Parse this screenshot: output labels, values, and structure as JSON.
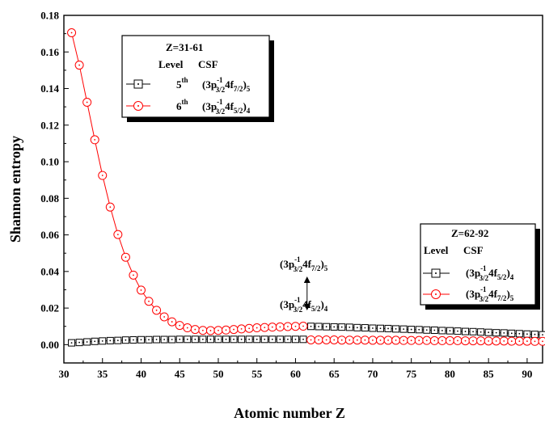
{
  "chart_data": {
    "type": "line",
    "xlabel": "Atomic number Z",
    "ylabel": "Shannon entropy",
    "xlim": [
      30,
      92
    ],
    "ylim": [
      -0.01,
      0.18
    ],
    "x_ticks": [
      "30",
      "35",
      "40",
      "45",
      "50",
      "55",
      "60",
      "65",
      "70",
      "75",
      "80",
      "85",
      "90"
    ],
    "y_ticks": [
      "0.00",
      "0.02",
      "0.04",
      "0.06",
      "0.08",
      "0.10",
      "0.12",
      "0.14",
      "0.16",
      "0.18"
    ],
    "grid": false,
    "legends": [
      {
        "title": "Z=31-61",
        "header_level": "Level",
        "header_csf": "CSF",
        "entries": [
          {
            "marker": "square",
            "color": "#000000",
            "level": "5",
            "level_sup": "th",
            "csf_base": "(3p",
            "csf_sup": "-1",
            "csf_sub1": "3/2",
            "csf_mid": "4f",
            "csf_sub2": "7/2",
            "csf_end": ")",
            "csf_j": "5"
          },
          {
            "marker": "circle",
            "color": "#ff0000",
            "level": "6",
            "level_sup": "th",
            "csf_base": "(3p",
            "csf_sup": "-1",
            "csf_sub1": "3/2",
            "csf_mid": "4f",
            "csf_sub2": "5/2",
            "csf_end": ")",
            "csf_j": "4"
          }
        ]
      },
      {
        "title": "Z=62-92",
        "header_level": "Level",
        "header_csf": "CSF",
        "entries": [
          {
            "marker": "square",
            "color": "#000000",
            "csf_base": "(3p",
            "csf_sup": "-1",
            "csf_sub1": "3/2",
            "csf_mid": "4f",
            "csf_sub2": "5/2",
            "csf_end": ")",
            "csf_j": "4"
          },
          {
            "marker": "circle",
            "color": "#ff0000",
            "csf_base": "(3p",
            "csf_sup": "-1",
            "csf_sub1": "3/2",
            "csf_mid": "4f",
            "csf_sub2": "7/2",
            "csf_end": ")",
            "csf_j": "5"
          }
        ]
      }
    ],
    "annotation": {
      "upper": {
        "csf_base": "(3p",
        "csf_sup": "-1",
        "csf_sub1": "3/2",
        "csf_mid": "4f",
        "csf_sub2": "7/2",
        "csf_end": ")",
        "csf_j": "5"
      },
      "lower": {
        "csf_base": "(3p",
        "csf_sup": "-1",
        "csf_sub1": "3/2",
        "csf_mid": "4f",
        "csf_sub2": "5/2",
        "csf_end": ")",
        "csf_j": "4"
      },
      "at_x": 61.5,
      "y_top": 0.0355,
      "y_bottom": 0.0205
    },
    "series": [
      {
        "marker": "square",
        "color": "#000000",
        "segments": [
          {
            "x": [
              31,
              32,
              33,
              34,
              35,
              36,
              37,
              38,
              39,
              40,
              41,
              42,
              43,
              44,
              45,
              46,
              47,
              48,
              49,
              50,
              51,
              52,
              53,
              54,
              55,
              56,
              57,
              58,
              59,
              60,
              61
            ],
            "y": [
              0.001,
              0.0012,
              0.0015,
              0.0018,
              0.002,
              0.0022,
              0.0023,
              0.0025,
              0.0026,
              0.0027,
              0.0027,
              0.0028,
              0.0028,
              0.0028,
              0.0029,
              0.0029,
              0.0029,
              0.0029,
              0.0029,
              0.0029,
              0.0029,
              0.0029,
              0.0029,
              0.0029,
              0.0029,
              0.0029,
              0.0029,
              0.0029,
              0.0029,
              0.0029,
              0.0029
            ]
          },
          {
            "x": [
              62,
              63,
              64,
              65,
              66,
              67,
              68,
              69,
              70,
              71,
              72,
              73,
              74,
              75,
              76,
              77,
              78,
              79,
              80,
              81,
              82,
              83,
              84,
              85,
              86,
              87,
              88,
              89,
              90,
              91,
              92
            ],
            "y": [
              0.01,
              0.0099,
              0.0098,
              0.0097,
              0.0096,
              0.0095,
              0.0093,
              0.0092,
              0.009,
              0.0089,
              0.0088,
              0.0086,
              0.0085,
              0.0083,
              0.0082,
              0.008,
              0.0079,
              0.0077,
              0.0076,
              0.0074,
              0.0072,
              0.0071,
              0.0069,
              0.0067,
              0.0065,
              0.0064,
              0.0062,
              0.006,
              0.0058,
              0.0056,
              0.0054
            ]
          }
        ]
      },
      {
        "marker": "circle",
        "color": "#ff0000",
        "segments": [
          {
            "x": [
              31,
              32,
              33,
              34,
              35,
              36,
              37,
              38,
              39,
              40,
              41,
              42,
              43,
              44,
              45,
              46,
              47,
              48,
              49,
              50,
              51,
              52,
              53,
              54,
              55,
              56,
              57,
              58,
              59,
              60,
              61
            ],
            "y": [
              0.1705,
              0.1528,
              0.1325,
              0.112,
              0.0925,
              0.0752,
              0.0602,
              0.0478,
              0.038,
              0.0298,
              0.0237,
              0.0188,
              0.0152,
              0.0125,
              0.0105,
              0.0092,
              0.0083,
              0.0078,
              0.0077,
              0.0078,
              0.008,
              0.0083,
              0.0086,
              0.0089,
              0.0092,
              0.0094,
              0.0096,
              0.0097,
              0.0099,
              0.01,
              0.0101
            ]
          },
          {
            "x": [
              62,
              63,
              64,
              65,
              66,
              67,
              68,
              69,
              70,
              71,
              72,
              73,
              74,
              75,
              76,
              77,
              78,
              79,
              80,
              81,
              82,
              83,
              84,
              85,
              86,
              87,
              88,
              89,
              90,
              91,
              92
            ],
            "y": [
              0.0026,
              0.0026,
              0.0026,
              0.0026,
              0.0025,
              0.0025,
              0.0025,
              0.0025,
              0.0024,
              0.0024,
              0.0024,
              0.0024,
              0.0023,
              0.0023,
              0.0023,
              0.0023,
              0.0022,
              0.0022,
              0.0022,
              0.0022,
              0.0021,
              0.0021,
              0.0021,
              0.002,
              0.002,
              0.002,
              0.0019,
              0.0019,
              0.0019,
              0.0018,
              0.0018
            ]
          }
        ]
      }
    ]
  }
}
